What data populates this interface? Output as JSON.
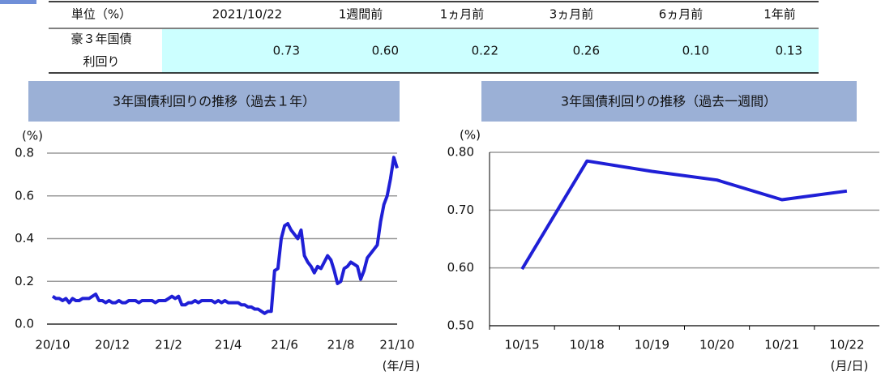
{
  "table": {
    "header": [
      "単位（%）",
      "2021/10/22",
      "1週間前",
      "1ヵ月前",
      "3ヵ月前",
      "6ヵ月前",
      "1年前"
    ],
    "rows": [
      [
        "豪３年国債 利回り",
        "0.73",
        "0.60",
        "0.22",
        "0.26",
        "0.10",
        "0.13"
      ]
    ]
  },
  "chart_data": [
    {
      "type": "line",
      "title": "3年国債利回りの推移（過去１年）",
      "y_label": "(%)",
      "x_label": "(年/月)",
      "color": "#1f1fd6",
      "grid": true,
      "categories": [
        "20/10",
        null,
        null,
        null,
        null,
        null,
        null,
        null,
        null,
        null,
        null,
        null,
        null,
        null,
        null,
        null,
        null,
        null,
        "20/12",
        null,
        null,
        null,
        null,
        null,
        null,
        null,
        null,
        null,
        null,
        null,
        null,
        null,
        null,
        null,
        null,
        "21/2",
        null,
        null,
        null,
        null,
        null,
        null,
        null,
        null,
        null,
        null,
        null,
        null,
        null,
        null,
        null,
        null,
        null,
        "21/4",
        null,
        null,
        null,
        null,
        null,
        null,
        null,
        null,
        null,
        null,
        null,
        null,
        null,
        null,
        null,
        null,
        "21/6",
        null,
        null,
        null,
        null,
        null,
        null,
        null,
        null,
        null,
        null,
        null,
        null,
        null,
        null,
        null,
        null,
        "21/8",
        null,
        null,
        null,
        null,
        null,
        null,
        null,
        null,
        null,
        null,
        null,
        null,
        null,
        null,
        null,
        null,
        "21/10"
      ],
      "values": [
        0.13,
        0.12,
        0.12,
        0.11,
        0.12,
        0.1,
        0.12,
        0.11,
        0.11,
        0.12,
        0.12,
        0.12,
        0.13,
        0.14,
        0.11,
        0.11,
        0.1,
        0.11,
        0.1,
        0.1,
        0.11,
        0.1,
        0.1,
        0.11,
        0.11,
        0.11,
        0.1,
        0.11,
        0.11,
        0.11,
        0.11,
        0.1,
        0.11,
        0.11,
        0.11,
        0.12,
        0.13,
        0.12,
        0.13,
        0.09,
        0.09,
        0.1,
        0.1,
        0.11,
        0.1,
        0.11,
        0.11,
        0.11,
        0.11,
        0.1,
        0.11,
        0.1,
        0.11,
        0.1,
        0.1,
        0.1,
        0.1,
        0.09,
        0.09,
        0.08,
        0.08,
        0.07,
        0.07,
        0.06,
        0.05,
        0.06,
        0.06,
        0.25,
        0.26,
        0.4,
        0.46,
        0.47,
        0.44,
        0.42,
        0.4,
        0.44,
        0.32,
        0.29,
        0.27,
        0.24,
        0.27,
        0.26,
        0.29,
        0.32,
        0.3,
        0.25,
        0.19,
        0.2,
        0.26,
        0.27,
        0.29,
        0.28,
        0.27,
        0.21,
        0.25,
        0.31,
        0.33,
        0.35,
        0.37,
        0.48,
        0.56,
        0.6,
        0.68,
        0.78,
        0.73
      ],
      "ylim": [
        0,
        0.8
      ],
      "yticks": [
        {
          "value": 0,
          "label": "0.0"
        },
        0.2,
        0.4,
        0.6,
        0.8
      ]
    },
    {
      "type": "line",
      "title": "3年国債利回りの推移（過去一週間）",
      "y_label": "(%)",
      "x_label": "(月/日)",
      "color": "#1f1fd6",
      "grid": true,
      "categories": [
        "10/15",
        "10/18",
        "10/19",
        "10/20",
        "10/21",
        "10/22"
      ],
      "values": [
        0.598,
        0.785,
        0.767,
        0.752,
        0.718,
        0.733
      ],
      "ylim": [
        0.5,
        0.8
      ],
      "yticks": [
        {
          "value": 0.5,
          "label": "0.50"
        },
        {
          "value": 0.6,
          "label": "0.60"
        },
        {
          "value": 0.7,
          "label": "0.70"
        },
        {
          "value": 0.8,
          "label": "0.80"
        }
      ]
    }
  ]
}
